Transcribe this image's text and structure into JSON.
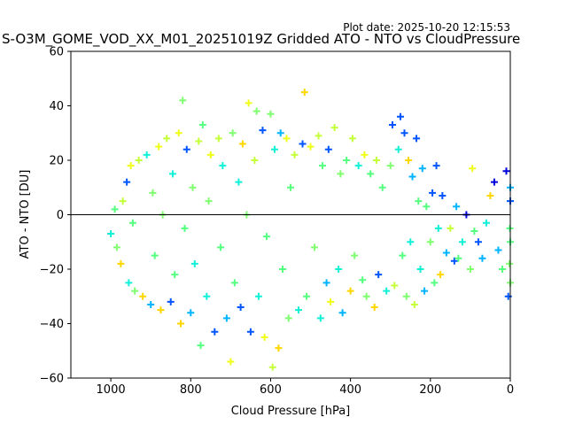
{
  "chart_data": {
    "type": "scatter",
    "title": "S-O3M_GOME_VOD_XX_M01_20251019Z Gridded ATO - NTO vs CloudPressure",
    "plot_date": "Plot date: 2025-10-20 12:15:53",
    "xlabel": "Cloud Pressure [hPa]",
    "ylabel": "ATO - NTO [DU]",
    "xlim": [
      1100,
      0
    ],
    "ylim": [
      -60,
      60
    ],
    "x_inverted": true,
    "x_ticks": [
      1000,
      800,
      600,
      400,
      200,
      0
    ],
    "y_ticks": [
      -60,
      -40,
      -20,
      0,
      20,
      40,
      60
    ],
    "reference_line": 0,
    "marker": "+",
    "grid": false,
    "colors": [
      "#0000dd",
      "#0055ff",
      "#00b4ff",
      "#12f0d8",
      "#55ff80",
      "#80ff70",
      "#c4ff3a",
      "#f0ff1a",
      "#ffd700"
    ],
    "points": [
      [
        1000,
        -7,
        3
      ],
      [
        990,
        2,
        4
      ],
      [
        985,
        -12,
        5
      ],
      [
        975,
        -18,
        8
      ],
      [
        970,
        5,
        6
      ],
      [
        960,
        12,
        1
      ],
      [
        955,
        -25,
        3
      ],
      [
        950,
        18,
        7
      ],
      [
        945,
        -3,
        4
      ],
      [
        940,
        -28,
        5
      ],
      [
        930,
        20,
        6
      ],
      [
        920,
        -30,
        8
      ],
      [
        910,
        22,
        3
      ],
      [
        900,
        -33,
        2
      ],
      [
        895,
        8,
        5
      ],
      [
        890,
        -15,
        4
      ],
      [
        880,
        25,
        7
      ],
      [
        875,
        -35,
        8
      ],
      [
        870,
        0,
        5
      ],
      [
        860,
        28,
        6
      ],
      [
        850,
        -32,
        1
      ],
      [
        845,
        15,
        3
      ],
      [
        840,
        -22,
        4
      ],
      [
        830,
        30,
        7
      ],
      [
        825,
        -40,
        8
      ],
      [
        820,
        42,
        5
      ],
      [
        815,
        -5,
        4
      ],
      [
        810,
        24,
        1
      ],
      [
        800,
        -36,
        2
      ],
      [
        795,
        10,
        5
      ],
      [
        790,
        -18,
        3
      ],
      [
        780,
        27,
        6
      ],
      [
        775,
        -48,
        4
      ],
      [
        770,
        33,
        4
      ],
      [
        760,
        -30,
        3
      ],
      [
        755,
        5,
        5
      ],
      [
        750,
        22,
        7
      ],
      [
        740,
        -43,
        1
      ],
      [
        730,
        28,
        6
      ],
      [
        725,
        -12,
        4
      ],
      [
        720,
        18,
        3
      ],
      [
        710,
        -38,
        2
      ],
      [
        700,
        -54,
        7
      ],
      [
        695,
        30,
        5
      ],
      [
        690,
        -25,
        4
      ],
      [
        680,
        12,
        3
      ],
      [
        675,
        -34,
        1
      ],
      [
        670,
        26,
        8
      ],
      [
        660,
        0,
        5
      ],
      [
        655,
        41,
        7
      ],
      [
        650,
        -43,
        1
      ],
      [
        640,
        20,
        6
      ],
      [
        635,
        38,
        5
      ],
      [
        630,
        -30,
        3
      ],
      [
        620,
        31,
        1
      ],
      [
        615,
        -45,
        7
      ],
      [
        610,
        -8,
        4
      ],
      [
        600,
        37,
        5
      ],
      [
        595,
        -56,
        6
      ],
      [
        590,
        24,
        3
      ],
      [
        580,
        -49,
        8
      ],
      [
        575,
        30,
        2
      ],
      [
        570,
        -20,
        4
      ],
      [
        560,
        28,
        7
      ],
      [
        555,
        -38,
        5
      ],
      [
        550,
        10,
        4
      ],
      [
        540,
        22,
        6
      ],
      [
        530,
        -35,
        3
      ],
      [
        520,
        26,
        1
      ],
      [
        515,
        45,
        8
      ],
      [
        510,
        -30,
        4
      ],
      [
        500,
        25,
        7
      ],
      [
        490,
        -12,
        5
      ],
      [
        480,
        29,
        6
      ],
      [
        475,
        -38,
        3
      ],
      [
        470,
        18,
        4
      ],
      [
        460,
        -25,
        2
      ],
      [
        455,
        24,
        1
      ],
      [
        450,
        -32,
        7
      ],
      [
        440,
        32,
        6
      ],
      [
        430,
        -20,
        3
      ],
      [
        425,
        15,
        5
      ],
      [
        420,
        -36,
        2
      ],
      [
        410,
        20,
        4
      ],
      [
        400,
        -28,
        8
      ],
      [
        395,
        28,
        6
      ],
      [
        390,
        -15,
        5
      ],
      [
        380,
        18,
        3
      ],
      [
        370,
        -24,
        4
      ],
      [
        365,
        22,
        7
      ],
      [
        360,
        -30,
        5
      ],
      [
        350,
        15,
        4
      ],
      [
        340,
        -34,
        8
      ],
      [
        335,
        20,
        6
      ],
      [
        330,
        -22,
        1
      ],
      [
        320,
        10,
        4
      ],
      [
        310,
        -28,
        3
      ],
      [
        300,
        18,
        5
      ],
      [
        295,
        33,
        1
      ],
      [
        290,
        -26,
        6
      ],
      [
        280,
        24,
        3
      ],
      [
        275,
        36,
        1
      ],
      [
        270,
        -15,
        4
      ],
      [
        265,
        30,
        1
      ],
      [
        260,
        -30,
        5
      ],
      [
        255,
        20,
        8
      ],
      [
        250,
        -10,
        3
      ],
      [
        245,
        14,
        2
      ],
      [
        240,
        -33,
        6
      ],
      [
        235,
        28,
        1
      ],
      [
        230,
        5,
        4
      ],
      [
        225,
        -20,
        3
      ],
      [
        220,
        17,
        2
      ],
      [
        215,
        -28,
        2
      ],
      [
        210,
        3,
        4
      ],
      [
        200,
        -10,
        5
      ],
      [
        195,
        8,
        1
      ],
      [
        190,
        -25,
        4
      ],
      [
        185,
        18,
        1
      ],
      [
        180,
        -5,
        3
      ],
      [
        175,
        -22,
        8
      ],
      [
        170,
        7,
        1
      ],
      [
        160,
        -14,
        2
      ],
      [
        150,
        -5,
        6
      ],
      [
        140,
        -17,
        1
      ],
      [
        135,
        3,
        2
      ],
      [
        130,
        -16,
        4
      ],
      [
        120,
        -10,
        3
      ],
      [
        110,
        0,
        0
      ],
      [
        100,
        -20,
        5
      ],
      [
        95,
        17,
        7
      ],
      [
        90,
        -6,
        4
      ],
      [
        80,
        -10,
        1
      ],
      [
        70,
        -16,
        2
      ],
      [
        60,
        -3,
        3
      ],
      [
        50,
        7,
        8
      ],
      [
        40,
        12,
        0
      ],
      [
        30,
        -13,
        2
      ],
      [
        20,
        -20,
        4
      ],
      [
        10,
        16,
        0
      ],
      [
        5,
        -30,
        1
      ],
      [
        0,
        -25,
        5
      ],
      [
        0,
        -10,
        4
      ],
      [
        0,
        5,
        1
      ],
      [
        0,
        10,
        2
      ],
      [
        2,
        -18,
        5
      ],
      [
        1,
        -5,
        4
      ]
    ]
  }
}
